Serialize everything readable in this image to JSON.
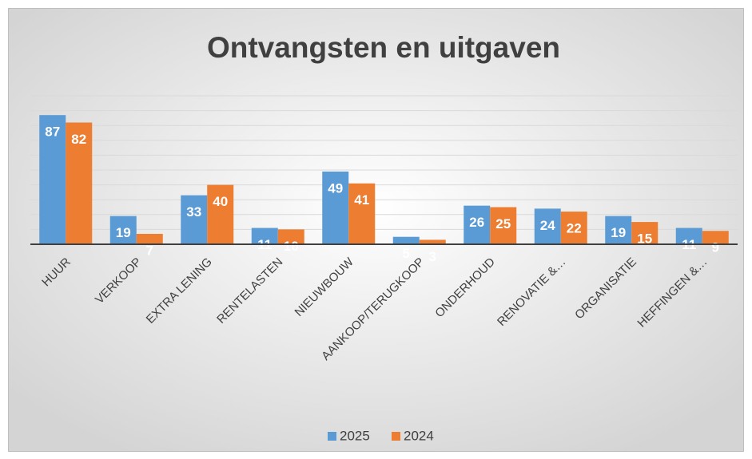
{
  "chart_data": {
    "type": "bar",
    "title": "Ontvangsten en uitgaven",
    "categories": [
      "HUUR",
      "VERKOOP",
      "EXTRA LENING",
      "RENTELASTEN",
      "NIEUWBOUW",
      "AANKOOP/TERUGKOOP",
      "ONDERHOUD",
      "RENOVATIE &…",
      "ORGANISATIE",
      "HEFFINGEN &…"
    ],
    "series": [
      {
        "name": "2025",
        "color": "#5b9bd5",
        "values": [
          87,
          19,
          33,
          11,
          49,
          5,
          26,
          24,
          19,
          11
        ]
      },
      {
        "name": "2024",
        "color": "#ed7d31",
        "values": [
          82,
          7,
          40,
          10,
          41,
          3,
          25,
          22,
          15,
          9
        ]
      }
    ],
    "ylim": [
      0,
      100
    ],
    "yticks": [
      0,
      10,
      20,
      30,
      40,
      50,
      60,
      70,
      80,
      90,
      100
    ],
    "grid": true,
    "legend": "bottom"
  }
}
